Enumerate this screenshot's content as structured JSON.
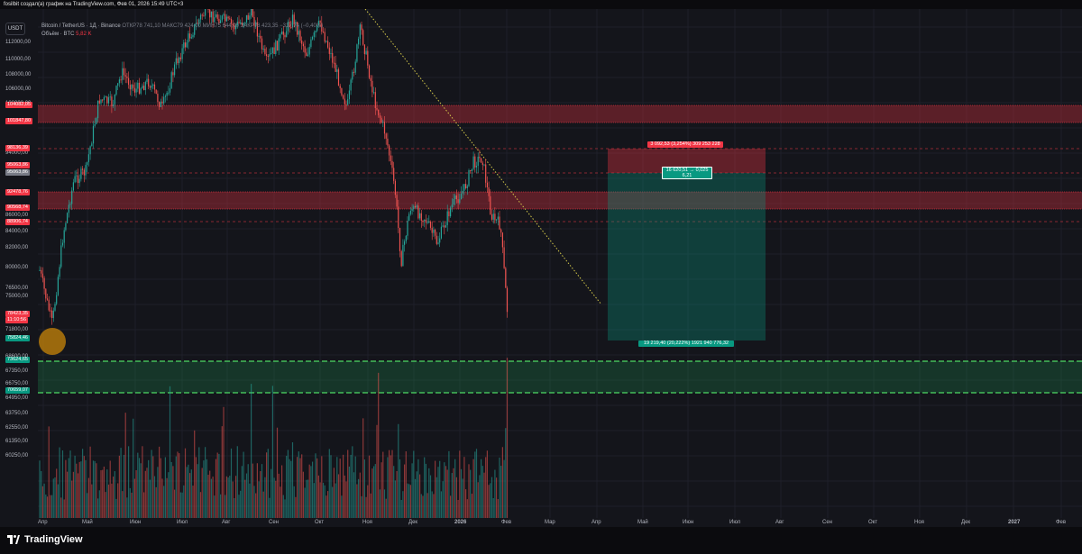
{
  "window": {
    "title": "fosilbit создал(а) график на TradingView.com, Фев 01, 2026 15:49 UTC+3"
  },
  "toolbar": {
    "currency_label": "USDT"
  },
  "legend": {
    "symbol": "Bitcoin / TetherUS · 1Д · Binance",
    "ohlc": "ОТКР78 741,10  МАКС79 424,00  МИН75 644,00  ЗАКР78 423,35  −317,74 (−0,40%)",
    "volume_label": "Объём · BTC",
    "volume_value": "5,82 K"
  },
  "y_axis": {
    "ticks": [
      "112000,00",
      "110000,00",
      "108000,00",
      "106000,00",
      "100000,00",
      "94000,00",
      "86000,00",
      "84000,00",
      "82000,00",
      "80000,00",
      "76500,00",
      "75000,00",
      "71800,00",
      "68600,00",
      "67350,00",
      "66750,00",
      "64950,00",
      "63750,00",
      "62550,00",
      "61350,00",
      "60250,00"
    ],
    "price_labels": [
      {
        "text": "104082,05",
        "color": "#f23645"
      },
      {
        "text": "101847,80",
        "color": "#f23645"
      },
      {
        "text": "98136,39",
        "color": "#f23645"
      },
      {
        "text": "95063,86",
        "color": "#f23645"
      },
      {
        "text": "95063,86",
        "color": "#787b86"
      },
      {
        "text": "92478,76",
        "color": "#f23645"
      },
      {
        "text": "90568,74",
        "color": "#f23645"
      },
      {
        "text": "88906,74",
        "color": "#f23645"
      },
      {
        "text": "78423,35",
        "color": "#f23645"
      },
      {
        "text": "11:10:56",
        "color": "#f23645"
      },
      {
        "text": "75824,46",
        "color": "#089981"
      },
      {
        "text": "73624,65",
        "color": "#089981"
      },
      {
        "text": "70659,07",
        "color": "#089981"
      }
    ]
  },
  "x_axis": {
    "ticks": [
      "Апр",
      "Май",
      "Июн",
      "Июл",
      "Авг",
      "Сен",
      "Окт",
      "Ноя",
      "Дек",
      "2026",
      "Фев",
      "Мар",
      "Апр",
      "Май",
      "Июн",
      "Июл",
      "Авг",
      "Сен",
      "Окт",
      "Ноя",
      "Дек",
      "2027",
      "Фев"
    ]
  },
  "position": {
    "stop_label": "3 092,53 (3,254%) 309 253 228",
    "entry_label_line1": "16 620,51 → 0,025",
    "entry_label_line2": "6,21",
    "target_label": "19 219,40 (20,222%) 1921 940 776,32"
  },
  "branding": {
    "logo_text": "TradingView"
  },
  "colors": {
    "up": "#26a69a",
    "down": "#ef5350",
    "zone_red": "#f23645",
    "zone_green": "#22ab5c",
    "trendline": "#d4c84a",
    "background": "#14151b"
  }
}
